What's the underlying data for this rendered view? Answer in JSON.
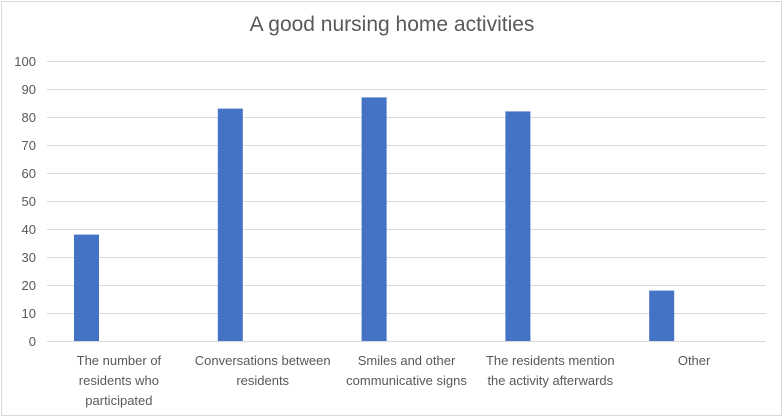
{
  "chart_data": {
    "type": "bar",
    "title": "A good nursing home activities",
    "categories": [
      [
        "The number of",
        "residents who",
        "participated"
      ],
      [
        "Conversations between",
        "residents"
      ],
      [
        "Smiles and other",
        "communicative signs"
      ],
      [
        "The residents mention",
        "the activity afterwards"
      ],
      [
        "Other"
      ]
    ],
    "values": [
      38,
      83,
      87,
      82,
      18
    ],
    "xlabel": "",
    "ylabel": "",
    "ylim": [
      0,
      100
    ],
    "yticks": [
      0,
      10,
      20,
      30,
      40,
      50,
      60,
      70,
      80,
      90,
      100
    ],
    "grid": true,
    "legend": "none",
    "colors": {
      "bar": "#4472c4",
      "grid": "#d9d9d9",
      "text": "#595959"
    }
  }
}
